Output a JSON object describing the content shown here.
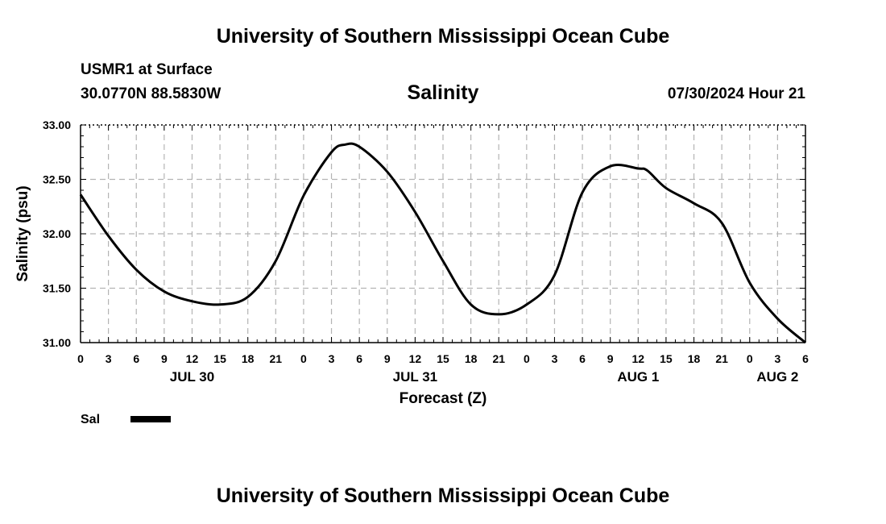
{
  "page": {
    "title_top": "University of Southern Mississippi Ocean Cube",
    "title_bottom": "University of Southern Mississippi Ocean Cube",
    "station": "USMR1 at Surface",
    "coords": "30.0770N  88.5830W",
    "chart_heading": "Salinity",
    "timestamp": "07/30/2024 Hour 21"
  },
  "colors": {
    "line": "#000000",
    "grid": "#b4b4b4",
    "background": "#ffffff"
  },
  "chart_data": {
    "type": "line",
    "title": "Salinity",
    "xlabel": "Forecast (Z)",
    "ylabel": "Salinity (psu)",
    "ylim": [
      31.0,
      33.0
    ],
    "xlim": [
      0,
      78
    ],
    "x_units": "hours since 00Z JUL 30",
    "yticks": [
      "31.00",
      "31.50",
      "32.00",
      "32.50",
      "33.00"
    ],
    "xtick_labels": [
      "0",
      "3",
      "6",
      "9",
      "12",
      "15",
      "18",
      "21",
      "0",
      "3",
      "6",
      "9",
      "12",
      "15",
      "18",
      "21",
      "0",
      "3",
      "6",
      "9",
      "12",
      "15",
      "18",
      "21",
      "0",
      "3",
      "6"
    ],
    "date_labels": [
      {
        "label": "JUL 30",
        "hour": 12
      },
      {
        "label": "JUL 31",
        "hour": 36
      },
      {
        "label": "AUG 1",
        "hour": 60
      },
      {
        "label": "AUG 2",
        "hour": 75
      }
    ],
    "grid": true,
    "legend": {
      "label": "Sal",
      "placement": "bottom-left"
    },
    "series": [
      {
        "name": "Sal",
        "x": [
          0,
          3,
          6,
          9,
          12,
          15,
          18,
          21,
          24,
          27,
          28.5,
          30,
          33,
          36,
          39,
          42,
          45,
          48,
          51,
          54,
          57,
          60,
          61,
          63,
          66,
          69,
          72,
          75,
          78
        ],
        "values": [
          32.36,
          31.98,
          31.67,
          31.47,
          31.38,
          31.35,
          31.42,
          31.75,
          32.35,
          32.75,
          32.82,
          32.8,
          32.57,
          32.2,
          31.75,
          31.35,
          31.26,
          31.35,
          31.62,
          32.38,
          32.62,
          32.6,
          32.58,
          32.42,
          32.28,
          32.1,
          31.55,
          31.22,
          31.0
        ]
      }
    ]
  }
}
